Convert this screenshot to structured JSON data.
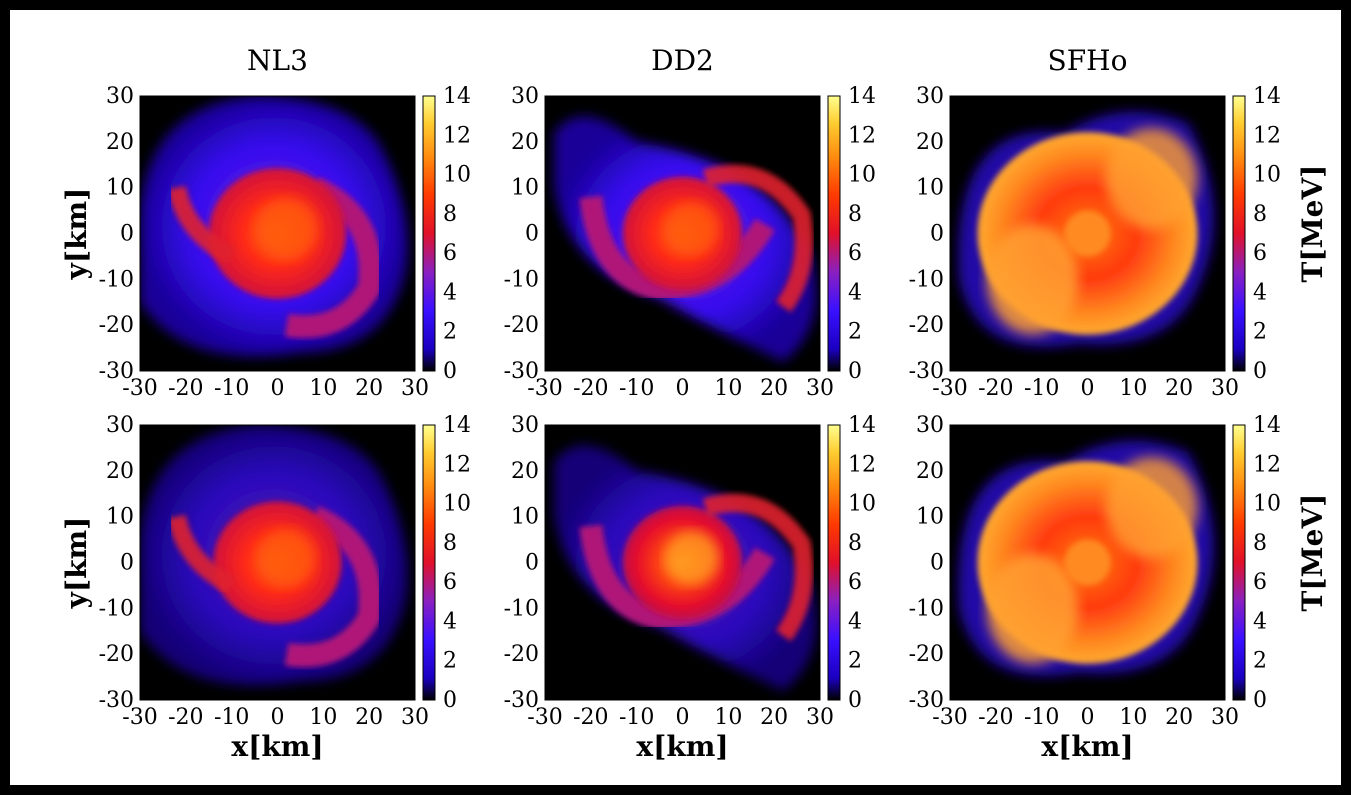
{
  "figure": {
    "columns": [
      "NL3",
      "DD2",
      "SFHo"
    ],
    "xlabel": "x[km]",
    "ylabel": "y[km]",
    "colorbar_label": "T[MeV]"
  },
  "chart_data": {
    "type": "heatmap",
    "quantity": "T",
    "unit": "MeV",
    "xlim": [
      -30,
      30
    ],
    "ylim": [
      -30,
      30
    ],
    "clim": [
      0,
      14
    ],
    "x_ticks": [
      -30,
      -20,
      -10,
      0,
      10,
      20,
      30
    ],
    "y_ticks": [
      -30,
      -20,
      -10,
      0,
      10,
      20,
      30
    ],
    "colorbar_ticks": [
      0,
      2,
      4,
      6,
      8,
      10,
      12,
      14
    ],
    "colormap": [
      "#000000",
      "#1a00ff",
      "#4a22d8",
      "#9a22a8",
      "#e0103c",
      "#ff3a00",
      "#ff8c10",
      "#ffcc30",
      "#ffff80"
    ],
    "panels": [
      {
        "row": 1,
        "eos": "NL3",
        "core_radius_km": 15,
        "core_T": 7,
        "disk_T": 3
      },
      {
        "row": 1,
        "eos": "DD2",
        "core_radius_km": 13,
        "core_T": 7.5,
        "disk_T": 3.5
      },
      {
        "row": 1,
        "eos": "SFHo",
        "core_radius_km": 24,
        "core_T": 9,
        "disk_T": 5
      },
      {
        "row": 2,
        "eos": "NL3",
        "core_radius_km": 14,
        "core_T": 7,
        "disk_T": 3
      },
      {
        "row": 2,
        "eos": "DD2",
        "core_radius_km": 13,
        "core_T": 8.5,
        "disk_T": 3.5
      },
      {
        "row": 2,
        "eos": "SFHo",
        "core_radius_km": 24,
        "core_T": 9,
        "disk_T": 5
      }
    ]
  }
}
